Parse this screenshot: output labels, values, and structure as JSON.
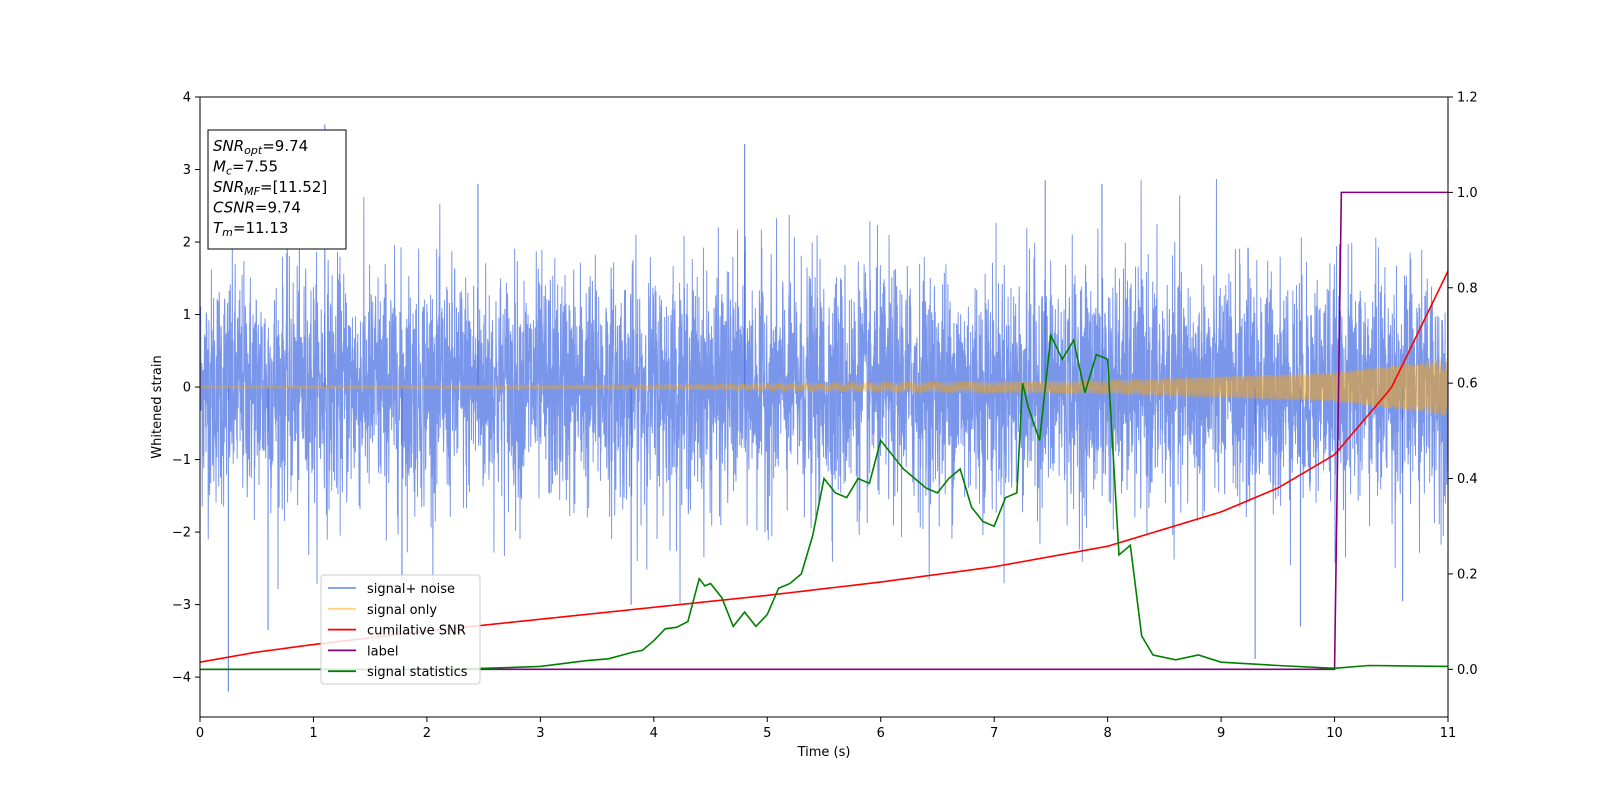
{
  "chart_data": {
    "type": "line",
    "title": "",
    "xlabel": "Time (s)",
    "ylabel": "Whitened strain",
    "xlim": [
      0,
      11
    ],
    "ylim": [
      -4.55,
      4.0
    ],
    "y2lim": [
      -0.1,
      1.2
    ],
    "x_ticks": [
      "0",
      "1",
      "2",
      "3",
      "4",
      "5",
      "6",
      "7",
      "8",
      "9",
      "10",
      "11"
    ],
    "y_ticks": [
      "−4",
      "−3",
      "−2",
      "−1",
      "0",
      "1",
      "2",
      "3",
      "4"
    ],
    "y2_ticks": [
      "0.0",
      "0.2",
      "0.4",
      "0.6",
      "0.8",
      "1.0",
      "1.2"
    ],
    "grid": false,
    "legend_position": "lower-left",
    "info_box": [
      {
        "label": "SNR",
        "sub": "opt",
        "value": "=9.74"
      },
      {
        "label": "M",
        "sub": "c",
        "value": "=7.55"
      },
      {
        "label": "SNR",
        "sub": "MF",
        "value": "=[11.52]"
      },
      {
        "label": "CSNR",
        "sub": "",
        "value": "=9.74"
      },
      {
        "label": "T",
        "sub": "m",
        "value": "=11.13"
      }
    ],
    "series": [
      {
        "name": "signal+ noise",
        "color": "#4169e1",
        "axis": "left",
        "noise_amplitude_sigma": 0.8,
        "peaks": [
          [
            0.25,
            -4.2
          ],
          [
            0.6,
            -3.35
          ],
          [
            1.1,
            3.62
          ],
          [
            1.78,
            -2.8
          ],
          [
            2.45,
            2.8
          ],
          [
            4.8,
            3.35
          ],
          [
            3.8,
            -3.0
          ],
          [
            9.3,
            -3.75
          ],
          [
            9.7,
            -3.3
          ],
          [
            10.6,
            -2.95
          ],
          [
            7.45,
            2.85
          ],
          [
            7.95,
            2.8
          ]
        ]
      },
      {
        "name": "signal only",
        "color": "#ffa500",
        "axis": "left",
        "amplitude_envelope": {
          "x": [
            0,
            4,
            8,
            10,
            11
          ],
          "y": [
            0.015,
            0.03,
            0.09,
            0.2,
            0.4
          ]
        }
      },
      {
        "name": "cumilative SNR",
        "color": "#ff0000",
        "axis": "right",
        "x": [
          0,
          0.5,
          1,
          2,
          3,
          4,
          5,
          6,
          7,
          8,
          9,
          9.5,
          10,
          10.5,
          11
        ],
        "y": [
          0.015,
          0.036,
          0.052,
          0.08,
          0.105,
          0.13,
          0.155,
          0.183,
          0.215,
          0.258,
          0.33,
          0.38,
          0.45,
          0.59,
          0.835
        ]
      },
      {
        "name": "label",
        "color": "#800080",
        "axis": "right",
        "x": [
          0,
          10.0,
          10.06,
          11
        ],
        "y": [
          0,
          0,
          1,
          1
        ]
      },
      {
        "name": "signal statistics",
        "color": "#008000",
        "axis": "right",
        "x": [
          0,
          1,
          2,
          2.5,
          3,
          3.2,
          3.4,
          3.6,
          3.8,
          3.9,
          4.0,
          4.1,
          4.2,
          4.3,
          4.4,
          4.45,
          4.5,
          4.6,
          4.7,
          4.8,
          4.9,
          5.0,
          5.1,
          5.2,
          5.3,
          5.4,
          5.5,
          5.6,
          5.7,
          5.8,
          5.9,
          6.0,
          6.1,
          6.2,
          6.3,
          6.4,
          6.5,
          6.6,
          6.7,
          6.8,
          6.9,
          7.0,
          7.1,
          7.2,
          7.25,
          7.3,
          7.4,
          7.5,
          7.6,
          7.7,
          7.8,
          7.9,
          8.0,
          8.1,
          8.2,
          8.3,
          8.4,
          8.6,
          8.8,
          9.0,
          9.5,
          10.0,
          10.3,
          11.0
        ],
        "y": [
          0,
          0,
          0,
          0.002,
          0.006,
          0.012,
          0.018,
          0.022,
          0.035,
          0.04,
          0.06,
          0.085,
          0.088,
          0.1,
          0.19,
          0.175,
          0.18,
          0.15,
          0.09,
          0.12,
          0.09,
          0.115,
          0.17,
          0.18,
          0.2,
          0.28,
          0.4,
          0.37,
          0.36,
          0.4,
          0.39,
          0.48,
          0.45,
          0.42,
          0.4,
          0.38,
          0.37,
          0.4,
          0.42,
          0.34,
          0.31,
          0.3,
          0.36,
          0.37,
          0.6,
          0.55,
          0.48,
          0.7,
          0.65,
          0.69,
          0.58,
          0.66,
          0.65,
          0.24,
          0.26,
          0.07,
          0.03,
          0.02,
          0.03,
          0.015,
          0.008,
          0.002,
          0.008,
          0.006
        ]
      }
    ]
  }
}
